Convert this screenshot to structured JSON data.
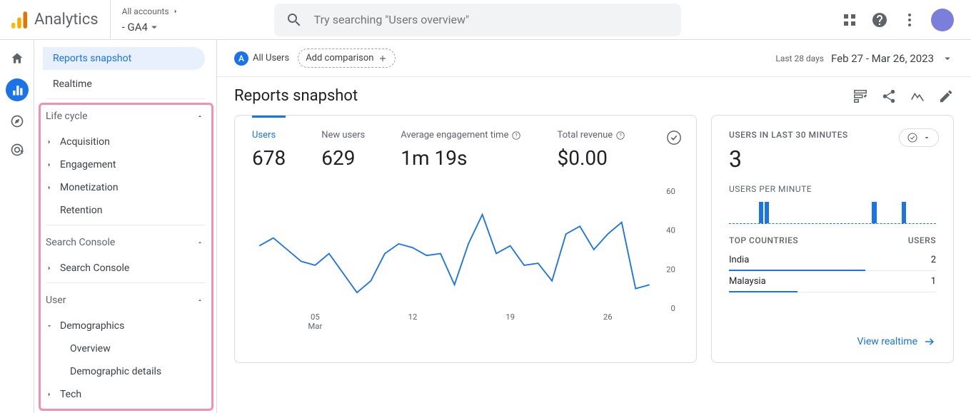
{
  "brand": "Analytics",
  "account_selector": {
    "top": "All accounts",
    "bottom": "- GA4"
  },
  "search": {
    "placeholder": "Try searching \"Users overview\""
  },
  "sidebar": {
    "top": [
      {
        "label": "Reports snapshot",
        "selected": true
      },
      {
        "label": "Realtime",
        "selected": false
      }
    ],
    "groups": [
      {
        "label": "Life cycle",
        "items": [
          {
            "label": "Acquisition",
            "caret": true
          },
          {
            "label": "Engagement",
            "caret": true
          },
          {
            "label": "Monetization",
            "caret": true
          },
          {
            "label": "Retention",
            "caret": false
          }
        ]
      },
      {
        "label": "Search Console",
        "items": [
          {
            "label": "Search Console",
            "caret": true
          }
        ]
      },
      {
        "label": "User",
        "items": [
          {
            "label": "Demographics",
            "caret": true,
            "expanded": true,
            "children": [
              {
                "label": "Overview"
              },
              {
                "label": "Demographic details"
              }
            ]
          },
          {
            "label": "Tech",
            "caret": true
          }
        ]
      }
    ]
  },
  "filter": {
    "badge": "A",
    "all_users": "All Users",
    "add_comparison": "Add comparison",
    "date_lbl": "Last 28 days",
    "date": "Feb 27 - Mar 26, 2023"
  },
  "page_title": "Reports snapshot",
  "metrics": [
    {
      "label": "Users",
      "value": "678",
      "active": true,
      "help": false
    },
    {
      "label": "New users",
      "value": "629",
      "active": false,
      "help": false
    },
    {
      "label": "Average engagement time",
      "value": "1m 19s",
      "active": false,
      "help": true
    },
    {
      "label": "Total revenue",
      "value": "$0.00",
      "active": false,
      "help": true
    }
  ],
  "line_chart": {
    "color": "#1a73e8",
    "bg": "#ffffff",
    "ylim": [
      0,
      60
    ],
    "yticks": [
      0,
      20,
      40,
      60
    ],
    "xticks": [
      "05",
      "12",
      "19",
      "26"
    ],
    "xsublabel": "Mar",
    "values": [
      32,
      36,
      30,
      24,
      22,
      28,
      18,
      8,
      14,
      28,
      33,
      31,
      27,
      28,
      12,
      33,
      48,
      28,
      32,
      22,
      23,
      14,
      38,
      42,
      30,
      38,
      44,
      10,
      12
    ]
  },
  "realtime_card": {
    "hdr": "USERS IN LAST 30 MINUTES",
    "value": "3",
    "per_min_lbl": "USERS PER MINUTE",
    "bars": [
      0,
      0,
      0,
      0,
      0,
      1,
      1,
      0,
      0,
      0,
      0,
      0,
      0,
      0,
      0,
      0,
      0,
      0,
      0,
      0,
      0,
      0,
      0,
      0,
      1,
      0,
      0,
      0,
      0,
      1,
      0,
      0,
      0,
      0,
      0
    ],
    "bar_color": "#1a73e8",
    "tc_hdr_l": "TOP COUNTRIES",
    "tc_hdr_r": "USERS",
    "countries": [
      {
        "name": "India",
        "users": "2",
        "pct": 66
      },
      {
        "name": "Malaysia",
        "users": "1",
        "pct": 33
      }
    ],
    "link": "View realtime"
  }
}
